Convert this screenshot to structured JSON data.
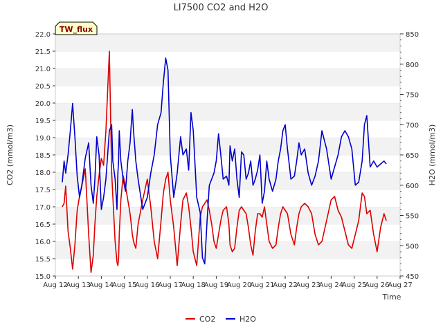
{
  "chart_data": {
    "type": "line",
    "title": "LI7500 CO2 and H2O",
    "xlabel": "Time",
    "ylabel_left": "CO2 (mmol/m3)",
    "ylabel_right": "H2O (mmol/m3)",
    "ylim_left": [
      15.0,
      22.0
    ],
    "ylim_right": [
      450,
      850
    ],
    "xlim": [
      0,
      15
    ],
    "y_ticks_left": [
      "15.0",
      "15.5",
      "16.0",
      "16.5",
      "17.0",
      "17.5",
      "18.0",
      "18.5",
      "19.0",
      "19.5",
      "20.0",
      "20.5",
      "21.0",
      "21.5",
      "22.0"
    ],
    "y_ticks_right": [
      "450",
      "500",
      "550",
      "600",
      "650",
      "700",
      "750",
      "800",
      "850"
    ],
    "x_ticks": [
      "Aug 12",
      "Aug 13",
      "Aug 14",
      "Aug 15",
      "Aug 16",
      "Aug 17",
      "Aug 18",
      "Aug 19",
      "Aug 20",
      "Aug 21",
      "Aug 22",
      "Aug 23",
      "Aug 24",
      "Aug 25",
      "Aug 26",
      "Aug 27"
    ],
    "site_label": "TW_flux",
    "legend_position": "bottom-center",
    "series": [
      {
        "name": "CO2",
        "color": "#dd0000",
        "axis": "left",
        "x": [
          0.3,
          0.38,
          0.45,
          0.55,
          0.65,
          0.75,
          0.85,
          0.95,
          1.05,
          1.15,
          1.3,
          1.45,
          1.55,
          1.65,
          1.72,
          1.8,
          1.9,
          2.0,
          2.1,
          2.2,
          2.35,
          2.45,
          2.5,
          2.6,
          2.68,
          2.72,
          2.75,
          2.78,
          2.85,
          2.95,
          3.05,
          3.15,
          3.25,
          3.3,
          3.35,
          3.4,
          3.5,
          3.6,
          3.8,
          4.0,
          4.15,
          4.3,
          4.45,
          4.6,
          4.7,
          4.8,
          4.9,
          5.0,
          5.15,
          5.3,
          5.45,
          5.55,
          5.7,
          5.8,
          5.9,
          6.0,
          6.15,
          6.3,
          6.4,
          6.5,
          6.6,
          6.7,
          6.8,
          6.9,
          7.0,
          7.1,
          7.2,
          7.3,
          7.45,
          7.55,
          7.6,
          7.7,
          7.8,
          7.9,
          8.0,
          8.1,
          8.2,
          8.3,
          8.4,
          8.5,
          8.6,
          8.7,
          8.8,
          8.9,
          9.0,
          9.1,
          9.2,
          9.3,
          9.45,
          9.6,
          9.7,
          9.8,
          9.9,
          10.0,
          10.1,
          10.25,
          10.4,
          10.5,
          10.6,
          10.7,
          10.85,
          11.0,
          11.15,
          11.3,
          11.45,
          11.6,
          11.8,
          12.0,
          12.15,
          12.3,
          12.45,
          12.6,
          12.75,
          12.9,
          13.05,
          13.2,
          13.35,
          13.45,
          13.55,
          13.7,
          13.85,
          14.0,
          14.15,
          14.3,
          14.4
        ],
        "values": [
          17.0,
          17.1,
          17.6,
          16.3,
          15.8,
          15.2,
          15.9,
          16.9,
          17.3,
          17.6,
          18.1,
          16.2,
          15.1,
          15.6,
          16.5,
          17.3,
          17.9,
          18.4,
          18.2,
          19.2,
          21.5,
          18.0,
          17.3,
          16.0,
          15.4,
          15.3,
          15.5,
          16.2,
          17.2,
          17.9,
          17.6,
          17.2,
          16.8,
          16.5,
          16.2,
          16.0,
          15.8,
          16.5,
          17.2,
          17.8,
          17.0,
          16.0,
          15.5,
          16.6,
          17.4,
          17.8,
          18.0,
          17.2,
          16.4,
          15.3,
          16.5,
          17.2,
          17.4,
          17.0,
          16.4,
          15.7,
          15.3,
          16.7,
          17.0,
          17.1,
          17.2,
          16.9,
          16.5,
          16.0,
          15.8,
          16.2,
          16.6,
          16.9,
          17.0,
          16.5,
          15.9,
          15.7,
          15.8,
          16.4,
          16.9,
          17.0,
          16.9,
          16.8,
          16.4,
          15.9,
          15.6,
          16.3,
          16.8,
          16.8,
          16.7,
          17.0,
          16.5,
          16.0,
          15.8,
          15.9,
          16.4,
          16.8,
          17.0,
          16.9,
          16.8,
          16.2,
          15.9,
          16.4,
          16.8,
          17.0,
          17.1,
          17.0,
          16.8,
          16.2,
          15.9,
          16.0,
          16.6,
          17.2,
          17.3,
          16.9,
          16.7,
          16.3,
          15.9,
          15.8,
          16.2,
          16.6,
          17.4,
          17.3,
          16.8,
          16.9,
          16.2,
          15.7,
          16.4,
          16.8,
          16.6
        ]
      },
      {
        "name": "H2O",
        "color": "#0000cc",
        "axis": "right",
        "x": [
          0.3,
          0.38,
          0.45,
          0.55,
          0.65,
          0.75,
          0.85,
          0.95,
          1.05,
          1.15,
          1.3,
          1.45,
          1.55,
          1.65,
          1.72,
          1.8,
          1.9,
          2.0,
          2.1,
          2.2,
          2.35,
          2.45,
          2.5,
          2.6,
          2.68,
          2.72,
          2.75,
          2.78,
          2.85,
          2.95,
          3.05,
          3.15,
          3.25,
          3.3,
          3.35,
          3.4,
          3.5,
          3.6,
          3.8,
          4.0,
          4.15,
          4.3,
          4.45,
          4.6,
          4.7,
          4.8,
          4.9,
          5.0,
          5.15,
          5.3,
          5.45,
          5.55,
          5.7,
          5.8,
          5.9,
          6.0,
          6.15,
          6.3,
          6.4,
          6.5,
          6.6,
          6.7,
          6.8,
          6.9,
          7.0,
          7.1,
          7.2,
          7.3,
          7.45,
          7.55,
          7.6,
          7.7,
          7.8,
          7.9,
          8.0,
          8.1,
          8.2,
          8.3,
          8.4,
          8.5,
          8.6,
          8.7,
          8.8,
          8.9,
          9.0,
          9.1,
          9.2,
          9.3,
          9.45,
          9.6,
          9.7,
          9.8,
          9.9,
          10.0,
          10.1,
          10.25,
          10.4,
          10.5,
          10.6,
          10.7,
          10.85,
          11.0,
          11.15,
          11.3,
          11.45,
          11.6,
          11.8,
          12.0,
          12.15,
          12.3,
          12.45,
          12.6,
          12.75,
          12.9,
          13.05,
          13.2,
          13.35,
          13.45,
          13.55,
          13.7,
          13.85,
          14.0,
          14.15,
          14.3,
          14.4
        ],
        "values": [
          605,
          640,
          620,
          650,
          690,
          735,
          680,
          615,
          580,
          600,
          645,
          670,
          600,
          570,
          610,
          680,
          650,
          560,
          580,
          610,
          690,
          700,
          640,
          610,
          560,
          620,
          640,
          690,
          640,
          610,
          590,
          640,
          670,
          700,
          725,
          690,
          640,
          610,
          560,
          580,
          620,
          650,
          700,
          720,
          770,
          810,
          790,
          650,
          580,
          620,
          680,
          650,
          660,
          625,
          720,
          690,
          580,
          555,
          480,
          470,
          540,
          600,
          610,
          620,
          640,
          685,
          650,
          610,
          615,
          600,
          665,
          640,
          660,
          610,
          580,
          655,
          650,
          610,
          620,
          640,
          600,
          610,
          625,
          650,
          570,
          590,
          640,
          610,
          590,
          610,
          640,
          660,
          690,
          700,
          660,
          610,
          615,
          640,
          670,
          650,
          660,
          620,
          600,
          615,
          640,
          690,
          660,
          610,
          630,
          650,
          680,
          690,
          680,
          660,
          600,
          605,
          640,
          700,
          715,
          630,
          640,
          630,
          635,
          640,
          635
        ]
      }
    ]
  }
}
